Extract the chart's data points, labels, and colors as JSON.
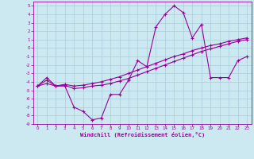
{
  "xlabel": "Windchill (Refroidissement éolien,°C)",
  "x": [
    0,
    1,
    2,
    3,
    4,
    5,
    6,
    7,
    8,
    9,
    10,
    11,
    12,
    13,
    14,
    15,
    16,
    17,
    18,
    19,
    20,
    21,
    22,
    23
  ],
  "line1": [
    -4.5,
    -3.5,
    -4.5,
    -4.5,
    -7.0,
    -7.5,
    -8.5,
    -8.3,
    -5.5,
    -5.5,
    -3.8,
    -1.5,
    -2.2,
    2.5,
    4.0,
    5.0,
    4.2,
    1.2,
    2.8,
    -3.5,
    -3.5,
    -3.5,
    -1.5,
    -1.0
  ],
  "line2": [
    -4.5,
    -3.8,
    -4.5,
    -4.3,
    -4.5,
    -4.4,
    -4.2,
    -4.0,
    -3.7,
    -3.4,
    -3.0,
    -2.6,
    -2.2,
    -1.8,
    -1.4,
    -1.0,
    -0.7,
    -0.3,
    0.0,
    0.3,
    0.5,
    0.8,
    1.0,
    1.2
  ],
  "line3": [
    -4.5,
    -4.2,
    -4.5,
    -4.4,
    -4.8,
    -4.7,
    -4.5,
    -4.4,
    -4.2,
    -3.9,
    -3.6,
    -3.2,
    -2.8,
    -2.4,
    -2.0,
    -1.6,
    -1.2,
    -0.8,
    -0.4,
    -0.1,
    0.2,
    0.5,
    0.8,
    1.0
  ],
  "ylim": [
    -9,
    5.5
  ],
  "xlim": [
    -0.5,
    23.5
  ],
  "yticks": [
    5,
    4,
    3,
    2,
    1,
    0,
    -1,
    -2,
    -3,
    -4,
    -5,
    -6,
    -7,
    -8,
    -9
  ],
  "xticks": [
    0,
    1,
    2,
    3,
    4,
    5,
    6,
    7,
    8,
    9,
    10,
    11,
    12,
    13,
    14,
    15,
    16,
    17,
    18,
    19,
    20,
    21,
    22,
    23
  ],
  "line_color": "#990099",
  "bg_color": "#cce8f0",
  "grid_color": "#aaccdd",
  "marker": "+",
  "marker_size": 3.5,
  "linewidth": 0.8
}
